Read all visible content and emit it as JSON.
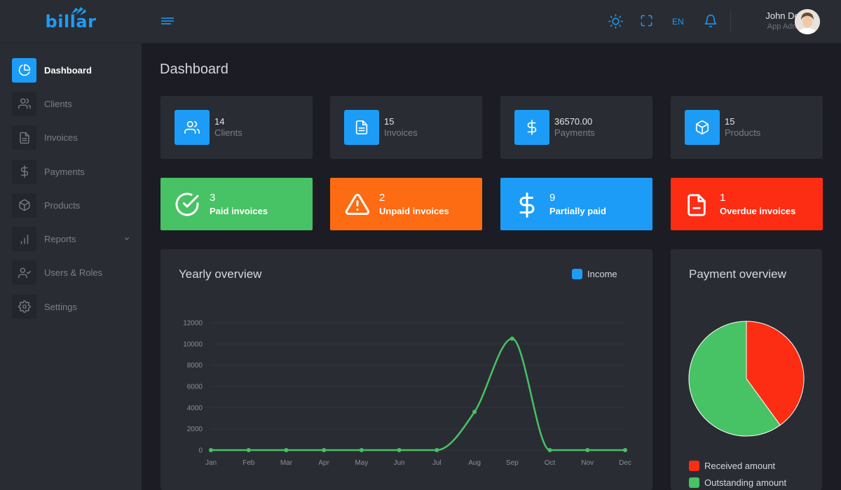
{
  "app": {
    "logo_text": "billar"
  },
  "sidebar": {
    "items": [
      {
        "label": "Dashboard",
        "icon": "pie-chart-icon",
        "active": true
      },
      {
        "label": "Clients",
        "icon": "users-icon",
        "active": false
      },
      {
        "label": "Invoices",
        "icon": "document-icon",
        "active": false
      },
      {
        "label": "Payments",
        "icon": "dollar-icon",
        "active": false
      },
      {
        "label": "Products",
        "icon": "box-icon",
        "active": false
      },
      {
        "label": "Reports",
        "icon": "bar-chart-icon",
        "active": false,
        "has_submenu": true
      },
      {
        "label": "Users & Roles",
        "icon": "user-check-icon",
        "active": false
      },
      {
        "label": "Settings",
        "icon": "gear-icon",
        "active": false
      }
    ]
  },
  "header": {
    "language": "EN",
    "user_name": "John Doe",
    "user_role": "App Admin"
  },
  "page": {
    "title": "Dashboard"
  },
  "stats": [
    {
      "value": "14",
      "label": "Clients",
      "icon": "users-icon"
    },
    {
      "value": "15",
      "label": "Invoices",
      "icon": "document-icon"
    },
    {
      "value": "36570.00",
      "label": "Payments",
      "icon": "dollar-icon"
    },
    {
      "value": "15",
      "label": "Products",
      "icon": "box-icon"
    }
  ],
  "status_cards": [
    {
      "value": "3",
      "label": "Paid invoices",
      "icon": "check-circle-icon",
      "color": "#47c264"
    },
    {
      "value": "2",
      "label": "Unpaid invoices",
      "icon": "warning-icon",
      "color": "#fd6b12"
    },
    {
      "value": "9",
      "label": "Partially paid",
      "icon": "dollar-icon",
      "color": "#1c9cf6"
    },
    {
      "value": "1",
      "label": "Overdue invoices",
      "icon": "file-minus-icon",
      "color": "#fd2d13"
    }
  ],
  "colors": {
    "accent": "#1c9cf6",
    "income_line": "#47c264",
    "received": "#fd2d13",
    "outstanding": "#47c264"
  },
  "yearly_overview": {
    "title": "Yearly overview",
    "legend": "Income"
  },
  "payment_overview": {
    "title": "Payment overview",
    "legend_received": "Received amount",
    "legend_outstanding": "Outstanding amount"
  },
  "chart_data": [
    {
      "type": "line",
      "title": "Yearly overview",
      "xlabel": "",
      "ylabel": "",
      "categories": [
        "Jan",
        "Feb",
        "Mar",
        "Apr",
        "May",
        "Jun",
        "Jul",
        "Aug",
        "Sep",
        "Oct",
        "Nov",
        "Dec"
      ],
      "series": [
        {
          "name": "Income",
          "values": [
            0,
            0,
            0,
            0,
            0,
            0,
            0,
            3600,
            10500,
            0,
            0,
            0
          ]
        }
      ],
      "ylim": [
        0,
        12000
      ],
      "yticks": [
        0,
        2000,
        4000,
        6000,
        8000,
        10000,
        12000
      ],
      "grid": true,
      "legend": "top-right"
    },
    {
      "type": "pie",
      "title": "Payment overview",
      "labels": [
        "Received amount",
        "Outstanding amount"
      ],
      "values": [
        40,
        60
      ],
      "legend": "bottom"
    }
  ]
}
